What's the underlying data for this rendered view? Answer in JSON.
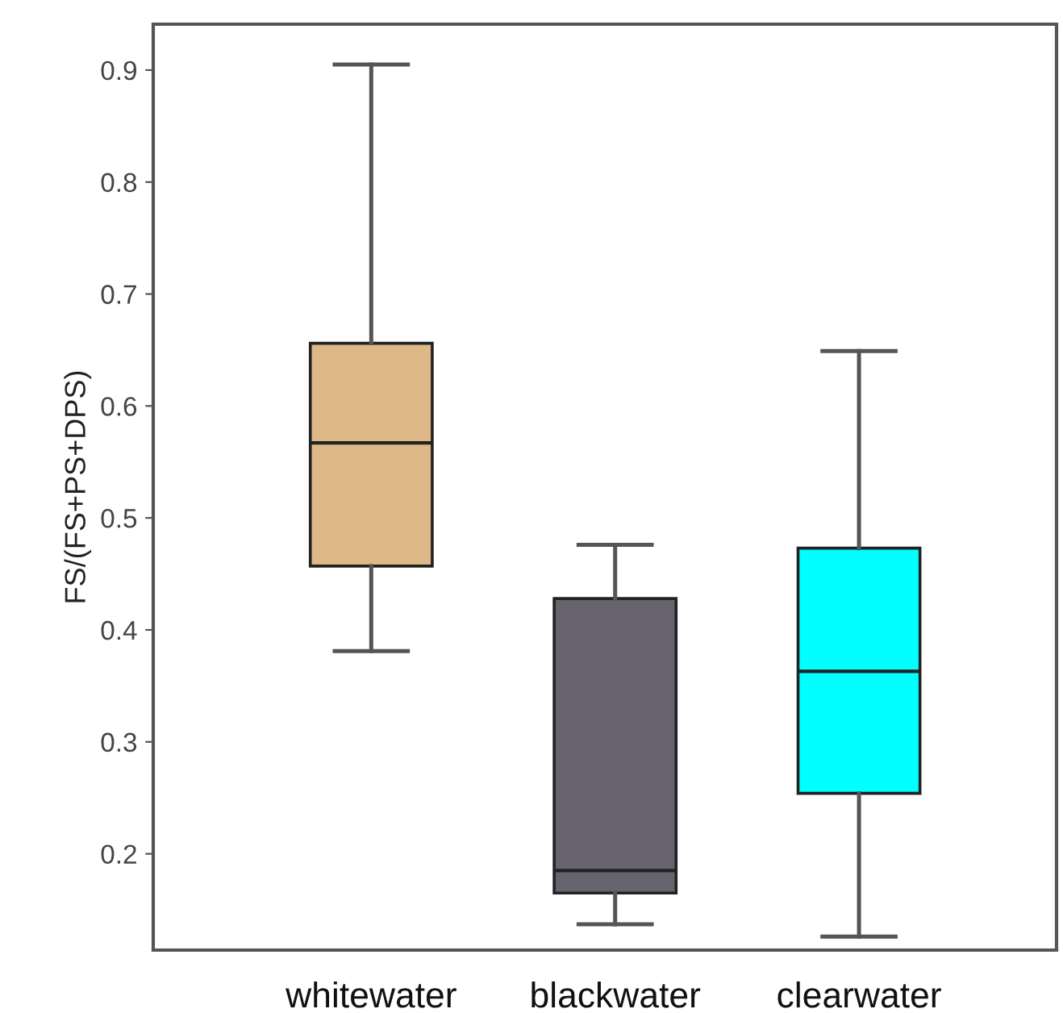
{
  "chart_data": {
    "type": "box",
    "ylabel": "FS/(FS+PS+DPS)",
    "categories": [
      "whitewater",
      "blackwater",
      "clearwater"
    ],
    "colors": [
      "#deb887",
      "#67636f",
      "#00ffff"
    ],
    "boxes": [
      {
        "low": 0.381,
        "q1": 0.457,
        "median": 0.567,
        "q3": 0.656,
        "high": 0.905
      },
      {
        "low": 0.137,
        "q1": 0.165,
        "median": 0.185,
        "q3": 0.428,
        "high": 0.476
      },
      {
        "low": 0.126,
        "q1": 0.254,
        "median": 0.363,
        "q3": 0.473,
        "high": 0.649
      }
    ],
    "ylim": [
      0.114,
      0.941
    ],
    "yticks": [
      0.2,
      0.3,
      0.4,
      0.5,
      0.6,
      0.7,
      0.8,
      0.9
    ],
    "grid": false
  }
}
